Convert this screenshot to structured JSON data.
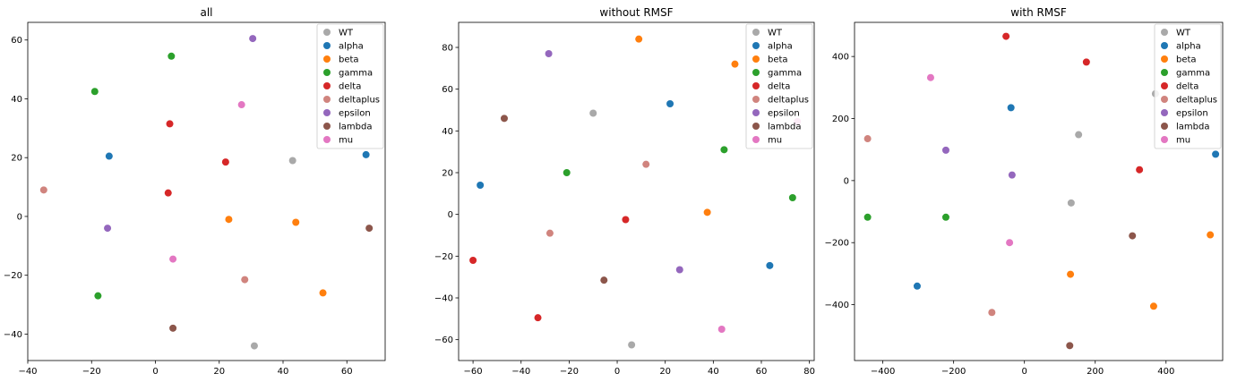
{
  "colors": {
    "WT": "#a9a9a9",
    "alpha": "#1f77b4",
    "beta": "#ff7f0e",
    "gamma": "#2ca02c",
    "delta": "#d62728",
    "deltaplus": "#d0847e",
    "epsilon": "#9467bd",
    "lambda": "#8c564b",
    "mu": "#e377c2"
  },
  "chart_data": [
    {
      "type": "scatter",
      "title": "all",
      "xlim": [
        -40,
        72
      ],
      "ylim": [
        -49,
        66
      ],
      "xticks": [
        -40,
        -20,
        0,
        20,
        40,
        60
      ],
      "yticks": [
        -40,
        -20,
        0,
        20,
        40,
        60
      ],
      "grid": false,
      "legend": "top-right",
      "series": [
        {
          "name": "WT",
          "points": [
            [
              43,
              19
            ],
            [
              31,
              -44
            ]
          ]
        },
        {
          "name": "alpha",
          "points": [
            [
              -14.5,
              20.5
            ],
            [
              66,
              21
            ]
          ]
        },
        {
          "name": "beta",
          "points": [
            [
              23,
              -1
            ],
            [
              44,
              -2
            ],
            [
              52.5,
              -26
            ]
          ]
        },
        {
          "name": "gamma",
          "points": [
            [
              5,
              54.5
            ],
            [
              -19,
              42.5
            ],
            [
              -18,
              -27
            ]
          ]
        },
        {
          "name": "delta",
          "points": [
            [
              4.5,
              31.5
            ],
            [
              22,
              18.5
            ],
            [
              4,
              8
            ]
          ]
        },
        {
          "name": "deltaplus",
          "points": [
            [
              -35,
              9
            ],
            [
              28,
              -21.5
            ]
          ]
        },
        {
          "name": "epsilon",
          "points": [
            [
              30.5,
              60.5
            ],
            [
              -15,
              -4
            ]
          ]
        },
        {
          "name": "lambda",
          "points": [
            [
              67,
              -4
            ],
            [
              5.5,
              -38
            ]
          ]
        },
        {
          "name": "mu",
          "points": [
            [
              27,
              38
            ],
            [
              5.5,
              -14.5
            ]
          ]
        }
      ]
    },
    {
      "type": "scatter",
      "title": "without RMSF",
      "xlim": [
        -66,
        82
      ],
      "ylim": [
        -70,
        92
      ],
      "xticks": [
        -60,
        -40,
        -20,
        0,
        20,
        40,
        60,
        80
      ],
      "yticks": [
        -60,
        -40,
        -20,
        0,
        20,
        40,
        60,
        80
      ],
      "grid": false,
      "legend": "top-right",
      "series": [
        {
          "name": "WT",
          "points": [
            [
              -10,
              48.5
            ],
            [
              6,
              -62.5
            ]
          ]
        },
        {
          "name": "alpha",
          "points": [
            [
              22,
              53
            ],
            [
              -57,
              14
            ],
            [
              63.5,
              -24.5
            ]
          ]
        },
        {
          "name": "beta",
          "points": [
            [
              9,
              84
            ],
            [
              49,
              72
            ],
            [
              37.5,
              1
            ]
          ]
        },
        {
          "name": "gamma",
          "points": [
            [
              44.5,
              31
            ],
            [
              -21,
              20
            ],
            [
              73,
              8
            ]
          ]
        },
        {
          "name": "delta",
          "points": [
            [
              3.5,
              -2.5
            ],
            [
              -60,
              -22
            ],
            [
              -33,
              -49.5
            ]
          ]
        },
        {
          "name": "deltaplus",
          "points": [
            [
              12,
              24
            ],
            [
              -28,
              -9
            ]
          ]
        },
        {
          "name": "epsilon",
          "points": [
            [
              -28.5,
              77
            ],
            [
              26,
              -26.5
            ]
          ]
        },
        {
          "name": "lambda",
          "points": [
            [
              -47,
              46
            ],
            [
              -5.5,
              -31.5
            ]
          ]
        },
        {
          "name": "mu",
          "points": [
            [
              75,
              44.5
            ],
            [
              43.5,
              -55
            ]
          ]
        }
      ]
    },
    {
      "type": "scatter",
      "title": "with RMSF",
      "xlim": [
        -480,
        560
      ],
      "ylim": [
        -580,
        510
      ],
      "xticks": [
        -400,
        -200,
        0,
        200,
        400
      ],
      "yticks": [
        -400,
        -200,
        0,
        200,
        400
      ],
      "grid": false,
      "legend": "top-right",
      "series": [
        {
          "name": "WT",
          "points": [
            [
              153,
              148
            ],
            [
              132,
              -72
            ],
            [
              370,
              280
            ]
          ]
        },
        {
          "name": "alpha",
          "points": [
            [
              -38,
              235
            ],
            [
              540,
              85
            ],
            [
              -303,
              -340
            ]
          ]
        },
        {
          "name": "beta",
          "points": [
            [
              525,
              -175
            ],
            [
              130,
              -302
            ],
            [
              365,
              -405
            ]
          ]
        },
        {
          "name": "gamma",
          "points": [
            [
              -443,
              -118
            ],
            [
              -222,
              -118
            ]
          ]
        },
        {
          "name": "delta",
          "points": [
            [
              -52,
              465
            ],
            [
              175,
              382
            ],
            [
              325,
              35
            ]
          ]
        },
        {
          "name": "deltaplus",
          "points": [
            [
              -443,
              135
            ],
            [
              -92,
              -425
            ]
          ]
        },
        {
          "name": "epsilon",
          "points": [
            [
              -222,
              98
            ],
            [
              -35,
              18
            ]
          ]
        },
        {
          "name": "lambda",
          "points": [
            [
              305,
              -178
            ],
            [
              128,
              -532
            ]
          ]
        },
        {
          "name": "mu",
          "points": [
            [
              -265,
              332
            ],
            [
              -42,
              -200
            ]
          ]
        }
      ]
    }
  ]
}
